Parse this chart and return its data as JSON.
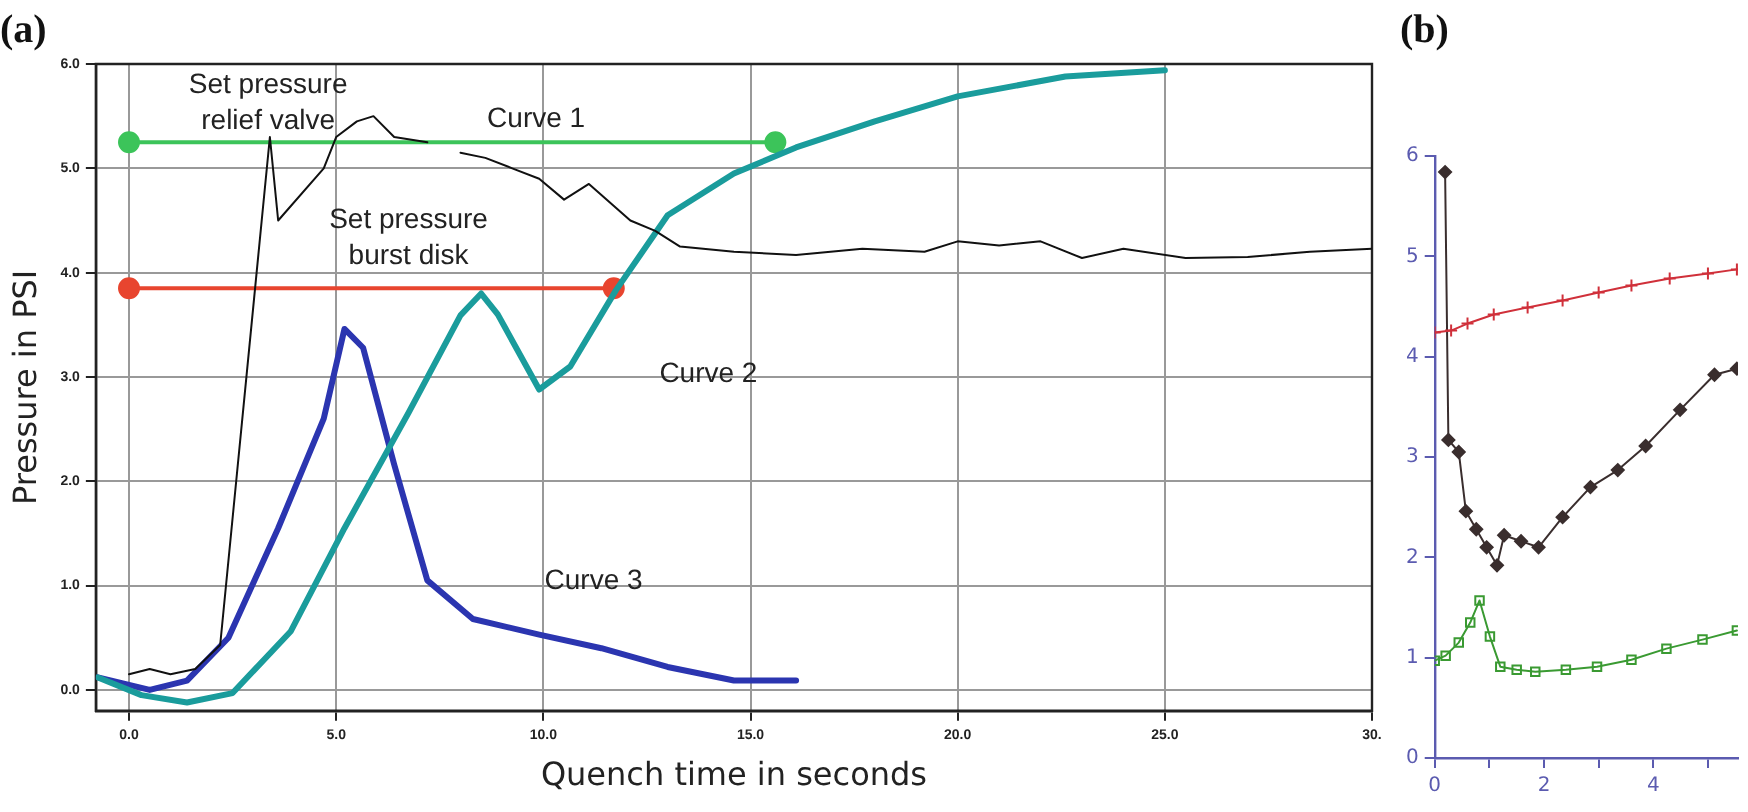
{
  "chart_data": [
    {
      "type": "line",
      "title": "(a)",
      "xlabel": "Quench time in seconds",
      "ylabel": "Pressure in PSI",
      "xlim": [
        -0.8,
        30
      ],
      "ylim": [
        -0.2,
        6
      ],
      "xticks": [
        {
          "value": 0,
          "label": "0.0"
        },
        {
          "value": 5,
          "label": "5.0"
        },
        {
          "value": 10,
          "label": "10.0"
        },
        {
          "value": 15,
          "label": "15.0"
        },
        {
          "value": 20,
          "label": "20.0"
        },
        {
          "value": 25,
          "label": "25.0"
        },
        {
          "value": 30,
          "label": "30."
        }
      ],
      "yticks": [
        {
          "value": 0,
          "label": "0.0"
        },
        {
          "value": 1,
          "label": "1.0"
        },
        {
          "value": 2,
          "label": "2.0"
        },
        {
          "value": 3,
          "label": "3.0"
        },
        {
          "value": 4,
          "label": "4.0"
        },
        {
          "value": 5,
          "label": "5.0"
        },
        {
          "value": 6,
          "label": "6.0"
        }
      ],
      "grid": true,
      "legend": false,
      "line_style": "solid",
      "series": [
        {
          "color": "#111111",
          "marker": "none",
          "x": [
            0,
            0.5,
            1,
            1.6,
            2.2,
            3.4,
            3.6,
            4.7,
            5.0,
            5.5,
            5.9,
            6.4,
            7.2,
            null,
            8.0,
            8.6,
            9.25,
            9.9,
            10.5,
            11.1,
            12.1,
            12.7,
            13.3,
            14.6,
            16.1,
            17.7,
            19.2,
            20,
            21,
            22,
            23,
            24,
            25.5,
            27,
            28.5,
            30
          ],
          "values": [
            0.15,
            0.2,
            0.15,
            0.2,
            0.43,
            5.3,
            4.5,
            5.0,
            5.3,
            5.45,
            5.5,
            5.3,
            5.25,
            null,
            5.15,
            5.1,
            5.0,
            4.9,
            4.7,
            4.85,
            4.5,
            4.4,
            4.25,
            4.2,
            4.17,
            4.23,
            4.2,
            4.3,
            4.26,
            4.3,
            4.14,
            4.23,
            4.14,
            4.15,
            4.2,
            4.23
          ]
        },
        {
          "color": "#1a9c9c",
          "marker": "none",
          "x": [
            -0.75,
            0.3,
            1.4,
            2.5,
            3.9,
            5.2,
            6.75,
            8.0,
            8.5,
            8.9,
            9.9,
            10.65,
            11.75,
            13.0,
            14.6,
            16.1,
            18,
            20,
            22.6,
            25
          ],
          "values": [
            0.12,
            -0.05,
            -0.12,
            -0.03,
            0.56,
            1.55,
            2.66,
            3.59,
            3.8,
            3.6,
            2.88,
            3.1,
            3.83,
            4.55,
            4.95,
            5.2,
            5.45,
            5.69,
            5.88,
            5.94
          ]
        },
        {
          "color": "#2b35b0",
          "marker": "none",
          "x": [
            -0.75,
            0.5,
            1.4,
            2.4,
            3.6,
            4.7,
            5.2,
            5.65,
            6.4,
            7.2,
            8.3,
            9.9,
            11.4,
            13.0,
            14.6,
            16.1
          ],
          "values": [
            0.12,
            0,
            0.09,
            0.5,
            1.55,
            2.6,
            3.46,
            3.28,
            2.16,
            1.05,
            0.68,
            0.53,
            0.4,
            0.22,
            0.09,
            0.09
          ]
        },
        {
          "color": "#3cc45a",
          "marker": "circle",
          "x": [
            0,
            15.6
          ],
          "values": [
            5.25,
            5.25
          ]
        },
        {
          "color": "#e8452f",
          "marker": "circle",
          "x": [
            0,
            11.7
          ],
          "values": [
            3.85,
            3.85
          ]
        }
      ],
      "annotations": [
        "Set pressure\nrelief valve",
        "Curve 1",
        "Set pressure\nburst disk",
        "Curve 2",
        "Curve 3"
      ]
    },
    {
      "type": "line",
      "title": "(b)",
      "xlim": [
        0,
        5.55
      ],
      "ylim": [
        0,
        6
      ],
      "xticks": [
        0,
        {
          "value": 1,
          "label": null
        },
        2,
        {
          "value": 3,
          "label": null
        },
        4,
        {
          "value": 5,
          "label": null
        }
      ],
      "yticks": [
        0,
        1,
        2,
        3,
        4,
        5,
        6
      ],
      "grid": false,
      "legend": false,
      "series": [
        {
          "color": "#d0303a",
          "marker": "cross",
          "x": [
            0,
            0.3,
            0.6,
            1.08,
            1.7,
            2.34,
            3.0,
            3.6,
            4.3,
            5.0,
            5.53
          ],
          "values": [
            4.24,
            4.26,
            4.33,
            4.42,
            4.49,
            4.56,
            4.64,
            4.71,
            4.78,
            4.83,
            4.87
          ]
        },
        {
          "color": "#3a2e2e",
          "marker": "diamond",
          "x": [
            0.19,
            0.25,
            0.44,
            0.57,
            0.76,
            0.95,
            1.14,
            1.27,
            1.58,
            1.9,
            2.34,
            2.85,
            3.35,
            3.86,
            4.49,
            5.12,
            5.53
          ],
          "values": [
            5.84,
            3.17,
            3.05,
            2.46,
            2.28,
            2.1,
            1.92,
            2.22,
            2.16,
            2.1,
            2.4,
            2.7,
            2.87,
            3.11,
            3.47,
            3.82,
            3.88
          ]
        },
        {
          "color": "#3a9a32",
          "marker": "square",
          "x": [
            0,
            0.2,
            0.44,
            0.65,
            0.82,
            1.01,
            1.2,
            1.5,
            1.84,
            2.4,
            2.97,
            3.6,
            4.24,
            4.9,
            5.53
          ],
          "values": [
            0.97,
            1.02,
            1.15,
            1.35,
            1.57,
            1.21,
            0.91,
            0.88,
            0.86,
            0.88,
            0.91,
            0.98,
            1.09,
            1.18,
            1.27
          ]
        }
      ]
    }
  ]
}
